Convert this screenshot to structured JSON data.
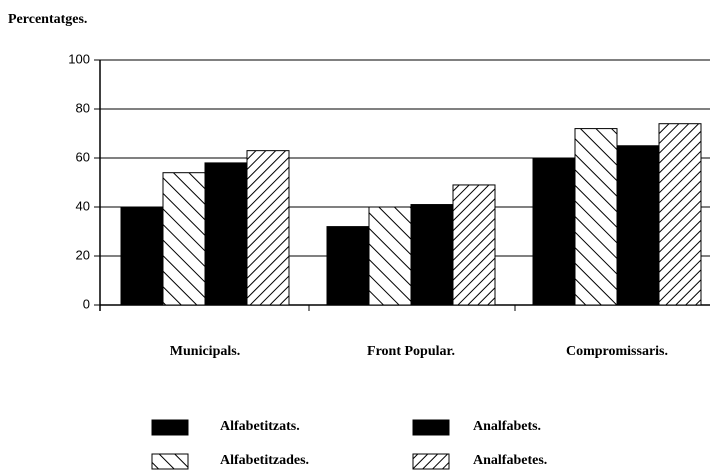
{
  "chart_data": {
    "type": "bar",
    "title": "Percentatges.",
    "categories": [
      "Municipals.",
      "Front Popular.",
      "Compromissaris."
    ],
    "series": [
      {
        "name": "Alfabetitzats.",
        "color": "#000000",
        "pattern": "solid",
        "values": [
          40,
          32,
          60
        ]
      },
      {
        "name": "Alfabetitzades.",
        "color": "#000000",
        "pattern": "backslash",
        "values": [
          54,
          40,
          72
        ]
      },
      {
        "name": "Analfabets.",
        "color": "#000000",
        "pattern": "solid",
        "values": [
          58,
          41,
          65
        ]
      },
      {
        "name": "Analfabetes.",
        "color": "#000000",
        "pattern": "slash",
        "values": [
          63,
          49,
          74
        ]
      }
    ],
    "ylim": [
      0,
      100
    ],
    "yticks": [
      0,
      20,
      40,
      60,
      80,
      100
    ],
    "grid": true
  }
}
